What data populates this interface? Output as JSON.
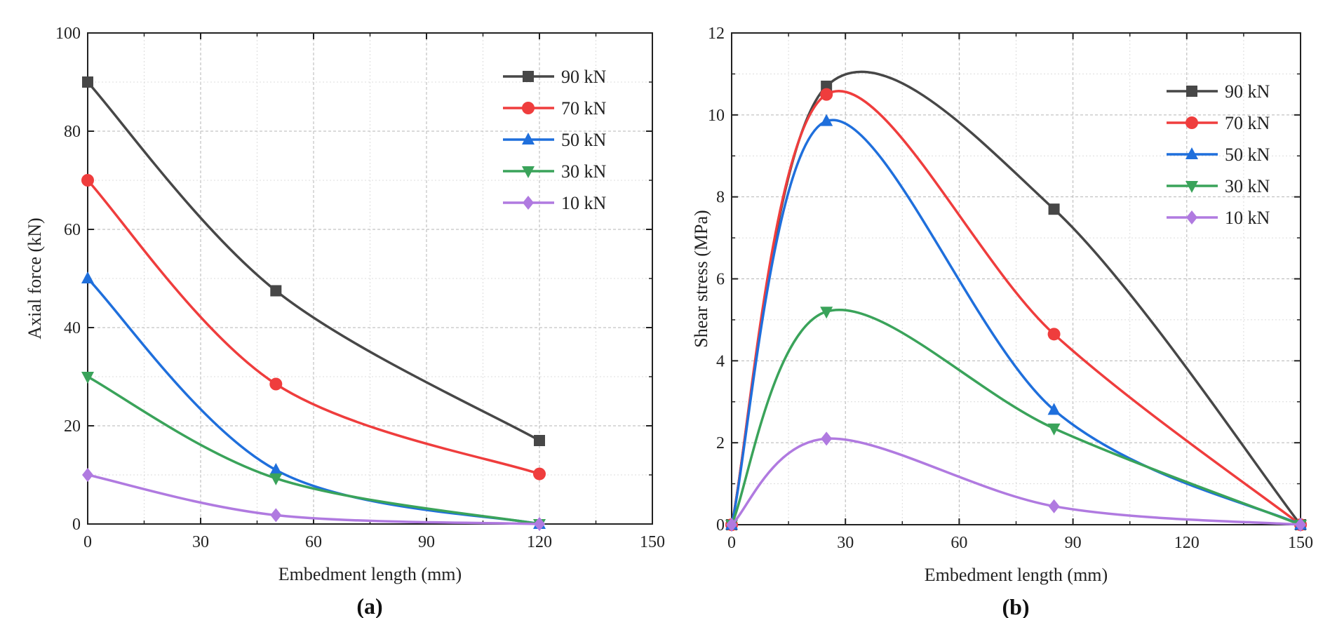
{
  "chart_data": [
    {
      "type": "line",
      "panel_label": "(a)",
      "xlabel": "Embedment length (mm)",
      "ylabel": "Axial force  (kN)",
      "xlim": [
        0,
        150
      ],
      "ylim": [
        0,
        100
      ],
      "xticks": [
        0,
        30,
        60,
        90,
        120,
        150
      ],
      "yticks": [
        0,
        20,
        40,
        60,
        80,
        100
      ],
      "grid": true,
      "legend_position": "top-right",
      "x": [
        0,
        50,
        120
      ],
      "series": [
        {
          "name": "90 kN",
          "color": "#474747",
          "marker": "square",
          "values": [
            90,
            47.5,
            17
          ]
        },
        {
          "name": "70 kN",
          "color": "#ef3d3d",
          "marker": "circle",
          "values": [
            70,
            28.5,
            10.2
          ]
        },
        {
          "name": "50 kN",
          "color": "#1f6fdc",
          "marker": "triangle-up",
          "values": [
            50,
            11,
            0
          ]
        },
        {
          "name": "30 kN",
          "color": "#3aa35a",
          "marker": "triangle-down",
          "values": [
            30,
            9.3,
            0
          ]
        },
        {
          "name": "10 kN",
          "color": "#b07ae0",
          "marker": "diamond",
          "values": [
            10,
            1.8,
            0
          ]
        }
      ]
    },
    {
      "type": "line",
      "panel_label": "(b)",
      "xlabel": "Embedment length (mm)",
      "ylabel": "Shear stress  (MPa)",
      "xlim": [
        0,
        150
      ],
      "ylim": [
        0,
        12
      ],
      "xticks": [
        0,
        30,
        60,
        90,
        120,
        150
      ],
      "yticks": [
        0,
        2,
        4,
        6,
        8,
        10,
        12
      ],
      "grid": true,
      "legend_position": "top-right",
      "x": [
        0,
        25,
        85,
        150
      ],
      "series": [
        {
          "name": "90 kN",
          "color": "#474747",
          "marker": "square",
          "values": [
            0,
            10.7,
            7.7,
            0
          ]
        },
        {
          "name": "70 kN",
          "color": "#ef3d3d",
          "marker": "circle",
          "values": [
            0,
            10.5,
            4.65,
            0
          ]
        },
        {
          "name": "50 kN",
          "color": "#1f6fdc",
          "marker": "triangle-up",
          "values": [
            0,
            9.85,
            2.8,
            0
          ]
        },
        {
          "name": "30 kN",
          "color": "#3aa35a",
          "marker": "triangle-down",
          "values": [
            0,
            5.2,
            2.35,
            0
          ]
        },
        {
          "name": "10 kN",
          "color": "#b07ae0",
          "marker": "diamond",
          "values": [
            0,
            2.1,
            0.45,
            0
          ]
        }
      ]
    }
  ]
}
